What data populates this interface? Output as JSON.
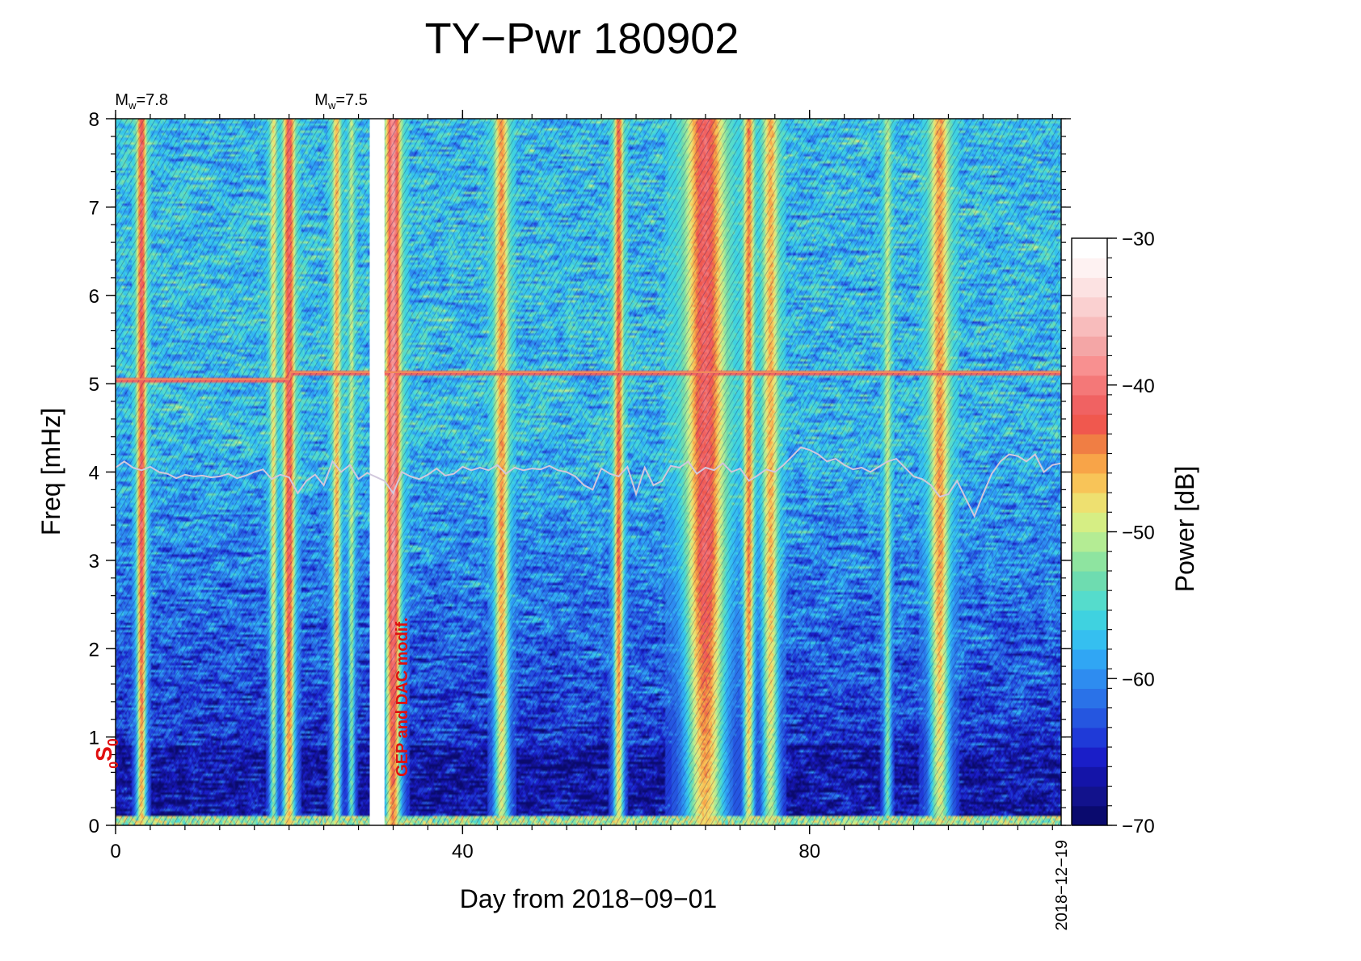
{
  "chart_data": {
    "type": "heatmap",
    "title": "TY−Pwr 180902",
    "xlabel": "Day from 2018−09−01",
    "ylabel": "Freq [mHz]",
    "xlim": [
      0,
      109
    ],
    "ylim": [
      0,
      8
    ],
    "x_major_ticks": [
      0,
      40,
      80
    ],
    "x_minor_step": 4,
    "y_major_ticks": [
      0,
      1,
      2,
      3,
      4,
      5,
      6,
      7,
      8
    ],
    "y_minor_step": 0.2,
    "end_date_label": "2018−12−19",
    "colorbar": {
      "label": "Power [dB]",
      "range": [
        -70,
        -30
      ],
      "ticks": [
        -70,
        -60,
        -50,
        -40,
        -30
      ],
      "colors": [
        "#0a0a6e",
        "#12128c",
        "#1414a8",
        "#1a1ec8",
        "#1f3ad8",
        "#2556e0",
        "#2a72e8",
        "#2e8cf0",
        "#30a6f4",
        "#35bff0",
        "#3fd2e0",
        "#55dccc",
        "#6edcb0",
        "#8ee4a0",
        "#b4ec94",
        "#d6ee84",
        "#eee070",
        "#f8c458",
        "#f8a448",
        "#f07e44",
        "#f0584e",
        "#f06262",
        "#f47878",
        "#f89090",
        "#f4a6a6",
        "#f8bcbc",
        "#fad0d0",
        "#fce2e2",
        "#fef2f2",
        "#ffffff"
      ]
    },
    "earthquakes": [
      {
        "day": 3.0,
        "label": "M",
        "sub": "w",
        "value": "=7.8"
      },
      {
        "day": 26.0,
        "label": "M",
        "sub": "w",
        "value": "=7.5"
      }
    ],
    "mode_label": {
      "label": "S",
      "sub": "0",
      "pre": "0",
      "freq_mHz": 0.814
    },
    "annotation": {
      "text": "GEP and DAC modif.",
      "day": 33
    },
    "data_gap": {
      "start_day": 29.3,
      "end_day": 31.0
    },
    "overtone_line": {
      "freq_before_day20": 5.05,
      "freq_after": 5.13
    },
    "background_level_db": {
      "low_freq": -64,
      "high_freq": -57
    },
    "event_bands": [
      {
        "day": 3.0,
        "width_days": 0.8,
        "power_db": -41
      },
      {
        "day": 18.2,
        "width_days": 0.6,
        "power_db": -48
      },
      {
        "day": 20.0,
        "width_days": 1.0,
        "power_db": -41
      },
      {
        "day": 25.5,
        "width_days": 0.7,
        "power_db": -46
      },
      {
        "day": 27.2,
        "width_days": 0.5,
        "power_db": -50
      },
      {
        "day": 32.0,
        "width_days": 1.3,
        "power_db": -38
      },
      {
        "day": 44.5,
        "width_days": 1.2,
        "power_db": -45
      },
      {
        "day": 58.0,
        "width_days": 0.8,
        "power_db": -43
      },
      {
        "day": 68.0,
        "width_days": 3.2,
        "power_db": -41
      },
      {
        "day": 73.0,
        "width_days": 0.9,
        "power_db": -44
      },
      {
        "day": 75.5,
        "width_days": 1.3,
        "power_db": -46
      },
      {
        "day": 89.0,
        "width_days": 0.6,
        "power_db": -50
      },
      {
        "day": 95.0,
        "width_days": 1.6,
        "power_db": -45
      }
    ],
    "baseline_trace": {
      "color": "#d2c8dc",
      "days": [
        0,
        1,
        2,
        3,
        4,
        5,
        6,
        7,
        8,
        9,
        10,
        11,
        12,
        13,
        14,
        15,
        16,
        17,
        18,
        19,
        20,
        21,
        22,
        23,
        24,
        25,
        26,
        27,
        28,
        29,
        31,
        32,
        33,
        34,
        35,
        36,
        37,
        38,
        39,
        40,
        41,
        42,
        43,
        44,
        45,
        46,
        47,
        48,
        49,
        50,
        51,
        52,
        53,
        54,
        55,
        56,
        57,
        58,
        59,
        60,
        61,
        62,
        63,
        64,
        65,
        66,
        67,
        68,
        69,
        70,
        71,
        72,
        73,
        74,
        75,
        76,
        77,
        78,
        79,
        80,
        81,
        82,
        83,
        84,
        85,
        86,
        87,
        88,
        89,
        90,
        91,
        92,
        93,
        94,
        95,
        96,
        97,
        98,
        99,
        100,
        101,
        102,
        103,
        104,
        105,
        106,
        107,
        108,
        109
      ],
      "freq_mHz": [
        4.05,
        4.12,
        4.05,
        4.02,
        4.06,
        4.0,
        3.98,
        3.93,
        3.97,
        3.95,
        3.96,
        3.94,
        3.95,
        3.98,
        3.93,
        3.96,
        4.0,
        4.03,
        3.92,
        3.97,
        3.94,
        3.76,
        3.9,
        3.97,
        3.85,
        4.12,
        4.0,
        4.08,
        3.92,
        3.99,
        3.9,
        3.76,
        4.0,
        3.95,
        3.92,
        3.97,
        4.04,
        3.96,
        3.98,
        4.06,
        4.02,
        4.05,
        4.02,
        4.08,
        3.98,
        4.05,
        4.02,
        4.04,
        4.03,
        4.07,
        4.02,
        4.0,
        3.95,
        3.85,
        3.8,
        4.04,
        3.98,
        3.95,
        4.06,
        3.75,
        4.05,
        3.85,
        3.9,
        4.07,
        4.05,
        4.12,
        3.98,
        4.05,
        4.02,
        4.1,
        4.0,
        4.04,
        3.9,
        3.96,
        4.03,
        4.0,
        4.08,
        4.18,
        4.28,
        4.25,
        4.2,
        4.12,
        4.15,
        4.08,
        4.03,
        4.05,
        4.0,
        4.06,
        4.12,
        4.15,
        4.05,
        3.95,
        3.92,
        3.85,
        3.72,
        3.75,
        3.9,
        3.7,
        3.5,
        3.75,
        3.98,
        4.12,
        4.2,
        4.18,
        4.12,
        4.2,
        4.0,
        4.08,
        4.1
      ]
    }
  }
}
